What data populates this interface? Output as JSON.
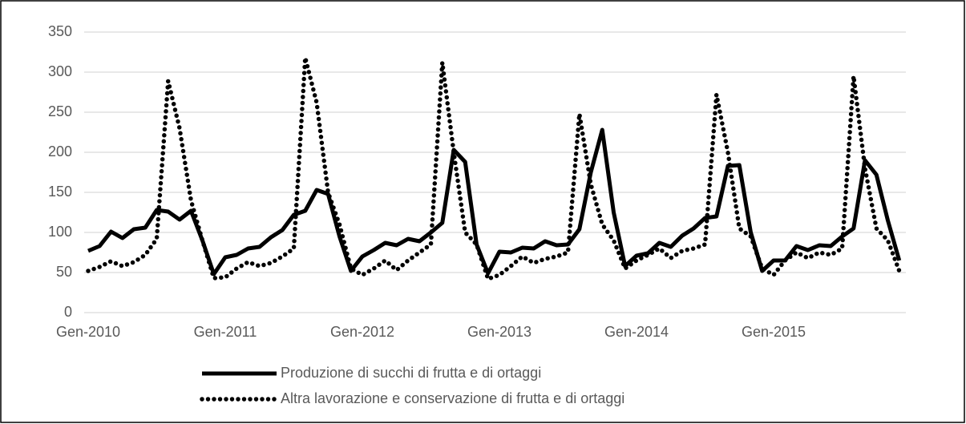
{
  "chart_data": {
    "type": "line",
    "categories": [
      "Gen-2010",
      null,
      null,
      null,
      null,
      null,
      null,
      null,
      null,
      null,
      null,
      null,
      "Gen-2011",
      null,
      null,
      null,
      null,
      null,
      null,
      null,
      null,
      null,
      null,
      null,
      "Gen-2012",
      null,
      null,
      null,
      null,
      null,
      null,
      null,
      null,
      null,
      null,
      null,
      "Gen-2013",
      null,
      null,
      null,
      null,
      null,
      null,
      null,
      null,
      null,
      null,
      null,
      "Gen-2014",
      null,
      null,
      null,
      null,
      null,
      null,
      null,
      null,
      null,
      null,
      null,
      "Gen-2015",
      null,
      null,
      null,
      null,
      null,
      null,
      null,
      null,
      null,
      null,
      null
    ],
    "series": [
      {
        "name": "Produzione di succhi di frutta e di ortaggi",
        "color": "#000000",
        "style": "solid",
        "values": [
          77,
          83,
          101,
          93,
          104,
          106,
          128,
          126,
          116,
          127,
          90,
          48,
          69,
          72,
          80,
          82,
          94,
          103,
          122,
          127,
          153,
          148,
          95,
          52,
          70,
          78,
          87,
          84,
          92,
          89,
          100,
          112,
          203,
          188,
          85,
          49,
          76,
          75,
          81,
          80,
          89,
          84,
          85,
          104,
          175,
          228,
          125,
          58,
          71,
          74,
          87,
          82,
          96,
          105,
          118,
          120,
          183,
          184,
          100,
          52,
          65,
          65,
          83,
          78,
          84,
          83,
          95,
          105,
          190,
          172,
          115,
          65
        ]
      },
      {
        "name": "Altra lavorazione e conservazione di frutta e di ortaggi",
        "color": "#000000",
        "style": "dotted",
        "values": [
          52,
          57,
          64,
          58,
          63,
          72,
          92,
          289,
          230,
          140,
          90,
          43,
          44,
          55,
          63,
          58,
          62,
          70,
          80,
          318,
          262,
          150,
          110,
          55,
          47,
          55,
          65,
          53,
          65,
          75,
          85,
          312,
          200,
          100,
          85,
          42,
          47,
          58,
          70,
          62,
          67,
          70,
          75,
          248,
          160,
          110,
          90,
          55,
          65,
          72,
          80,
          68,
          77,
          80,
          85,
          272,
          200,
          105,
          95,
          55,
          47,
          65,
          75,
          68,
          75,
          72,
          80,
          295,
          180,
          105,
          90,
          52
        ]
      }
    ],
    "ylim": [
      0,
      350
    ],
    "yticks": [
      0,
      50,
      100,
      150,
      200,
      250,
      300,
      350
    ],
    "grid": true,
    "legend": "bottom"
  }
}
